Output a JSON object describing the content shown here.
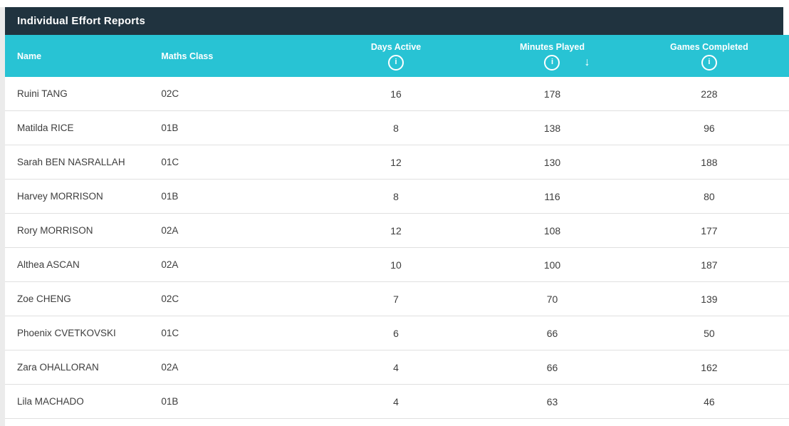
{
  "card": {
    "title": "Individual Effort Reports"
  },
  "colors": {
    "title_bar": "#20333f",
    "table_header": "#28c3d4",
    "row_divider": "#e0e0e0",
    "row_text": "#3d3d3d"
  },
  "icons": {
    "info": "i",
    "sort_desc": "↓"
  },
  "table": {
    "columns": [
      {
        "key": "name",
        "label": "Name",
        "has_info": false,
        "sorted": ""
      },
      {
        "key": "maths_class",
        "label": "Maths Class",
        "has_info": false,
        "sorted": ""
      },
      {
        "key": "days_active",
        "label": "Days Active",
        "has_info": true,
        "sorted": ""
      },
      {
        "key": "minutes_played",
        "label": "Minutes Played",
        "has_info": true,
        "sorted": "desc"
      },
      {
        "key": "games_completed",
        "label": "Games Completed",
        "has_info": true,
        "sorted": ""
      }
    ],
    "rows": [
      {
        "name": "Ruini TANG",
        "maths_class": "02C",
        "days_active": "16",
        "minutes_played": "178",
        "games_completed": "228"
      },
      {
        "name": "Matilda RICE",
        "maths_class": "01B",
        "days_active": "8",
        "minutes_played": "138",
        "games_completed": "96"
      },
      {
        "name": "Sarah BEN NASRALLAH",
        "maths_class": "01C",
        "days_active": "12",
        "minutes_played": "130",
        "games_completed": "188"
      },
      {
        "name": "Harvey MORRISON",
        "maths_class": "01B",
        "days_active": "8",
        "minutes_played": "116",
        "games_completed": "80"
      },
      {
        "name": "Rory MORRISON",
        "maths_class": "02A",
        "days_active": "12",
        "minutes_played": "108",
        "games_completed": "177"
      },
      {
        "name": "Althea ASCAN",
        "maths_class": "02A",
        "days_active": "10",
        "minutes_played": "100",
        "games_completed": "187"
      },
      {
        "name": "Zoe CHENG",
        "maths_class": "02C",
        "days_active": "7",
        "minutes_played": "70",
        "games_completed": "139"
      },
      {
        "name": "Phoenix CVETKOVSKI",
        "maths_class": "01C",
        "days_active": "6",
        "minutes_played": "66",
        "games_completed": "50"
      },
      {
        "name": "Zara OHALLORAN",
        "maths_class": "02A",
        "days_active": "4",
        "minutes_played": "66",
        "games_completed": "162"
      },
      {
        "name": "Lila MACHADO",
        "maths_class": "01B",
        "days_active": "4",
        "minutes_played": "63",
        "games_completed": "46"
      }
    ]
  }
}
